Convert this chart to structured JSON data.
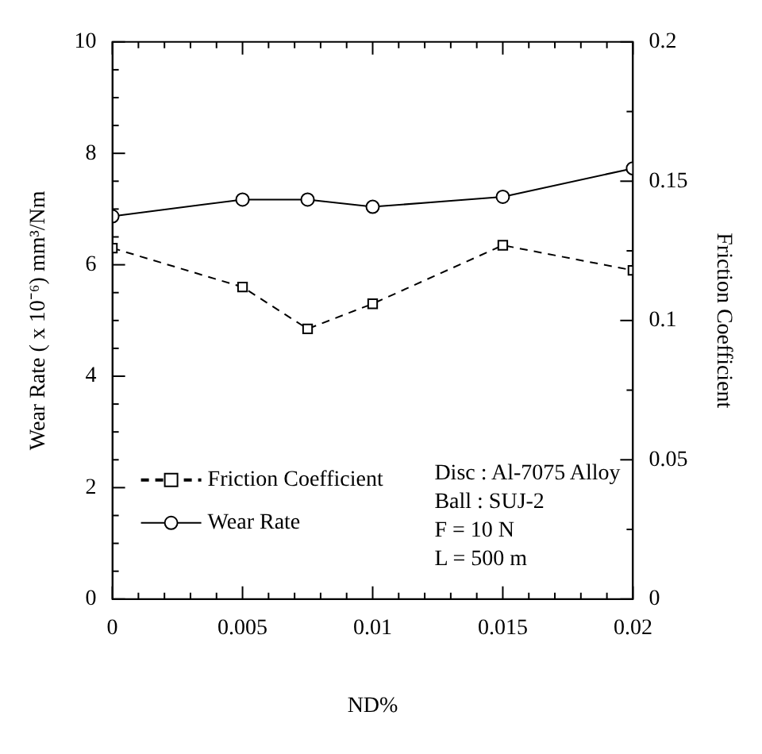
{
  "chart_data": {
    "type": "line",
    "xlabel": "ND%",
    "ylabel": "Wear Rate ( x 10⁻⁶) mm³/Nm",
    "y2label": "Friction Coefficient",
    "x": [
      0,
      0.005,
      0.0075,
      0.01,
      0.015,
      0.02
    ],
    "series": [
      {
        "name": "Friction Coefficient",
        "color": "#000000",
        "axis": "y2",
        "marker": "square",
        "line_style": "dashed",
        "values": [
          0.126,
          0.112,
          0.097,
          0.106,
          0.127,
          0.118
        ]
      },
      {
        "name": "Wear Rate",
        "color": "#000000",
        "marker": "circle",
        "line_style": "solid",
        "values": [
          6.87,
          7.17,
          7.17,
          7.04,
          7.22,
          7.73
        ]
      }
    ],
    "xlim": [
      0,
      0.02
    ],
    "xticks": [
      0,
      {
        "value": 0.001,
        "label": null
      },
      {
        "value": 0.002,
        "label": null
      },
      {
        "value": 0.003,
        "label": null
      },
      {
        "value": 0.004,
        "label": null
      },
      0.005,
      {
        "value": 0.006,
        "label": null
      },
      {
        "value": 0.007,
        "label": null
      },
      {
        "value": 0.008,
        "label": null
      },
      {
        "value": 0.009,
        "label": null
      },
      0.01,
      {
        "value": 0.011,
        "label": null
      },
      {
        "value": 0.012,
        "label": null
      },
      {
        "value": 0.013,
        "label": null
      },
      {
        "value": 0.014,
        "label": null
      },
      0.015,
      {
        "value": 0.016,
        "label": null
      },
      {
        "value": 0.017,
        "label": null
      },
      {
        "value": 0.018,
        "label": null
      },
      {
        "value": 0.019,
        "label": null
      },
      0.02
    ],
    "ylim": [
      0,
      10
    ],
    "yticks": [
      0,
      {
        "value": 0.5,
        "label": null
      },
      {
        "value": 1,
        "label": null
      },
      {
        "value": 1.5,
        "label": null
      },
      2,
      {
        "value": 2.5,
        "label": null
      },
      {
        "value": 3,
        "label": null
      },
      {
        "value": 3.5,
        "label": null
      },
      4,
      {
        "value": 4.5,
        "label": null
      },
      {
        "value": 5,
        "label": null
      },
      {
        "value": 5.5,
        "label": null
      },
      6,
      {
        "value": 6.5,
        "label": null
      },
      {
        "value": 7,
        "label": null
      },
      {
        "value": 7.5,
        "label": null
      },
      8,
      {
        "value": 8.5,
        "label": null
      },
      {
        "value": 9,
        "label": null
      },
      {
        "value": 9.5,
        "label": null
      },
      10
    ],
    "y2lim": [
      0,
      0.2
    ],
    "y2ticks": [
      0,
      {
        "value": 0.025,
        "label": null
      },
      0.05,
      {
        "value": 0.075,
        "label": null
      },
      0.1,
      {
        "value": 0.125,
        "label": null
      },
      0.15,
      {
        "value": 0.175,
        "label": null
      },
      0.2
    ],
    "grid": false,
    "legend": "bottom left",
    "annotations": [
      "Disc : Al-7075 Alloy",
      "Ball : SUJ-2",
      "F = 10 N",
      "L = 500 m"
    ]
  }
}
